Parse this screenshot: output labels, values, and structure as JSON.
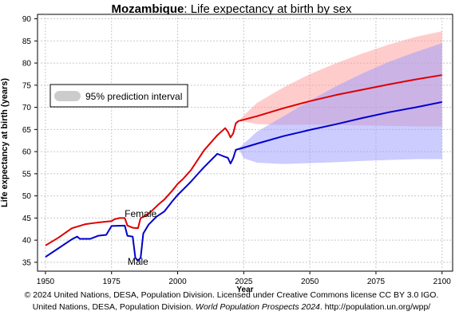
{
  "chart_data": {
    "type": "line",
    "title_country": "Mozambique",
    "title_rest": ": Life expectancy at birth by sex",
    "xlabel": "Year",
    "ylabel": "Life expectancy at birth (years)",
    "xlim": [
      1947,
      2104
    ],
    "ylim": [
      33,
      91
    ],
    "x_ticks": [
      1950,
      1975,
      2000,
      2025,
      2050,
      2075,
      2100
    ],
    "y_ticks": [
      35,
      40,
      45,
      50,
      55,
      60,
      65,
      70,
      75,
      80,
      85,
      90
    ],
    "grid": true,
    "legend": {
      "label": "95% prediction interval",
      "placement": "upper-left"
    },
    "series": [
      {
        "name": "Female",
        "color": "#dd0000",
        "band_color": "#ff9999",
        "points": [
          [
            1950,
            38.8
          ],
          [
            1955,
            40.6
          ],
          [
            1960,
            42.7
          ],
          [
            1965,
            43.6
          ],
          [
            1970,
            44.0
          ],
          [
            1975,
            44.3
          ],
          [
            1976,
            44.7
          ],
          [
            1978,
            45.0
          ],
          [
            1980,
            45.0
          ],
          [
            1981,
            43.3
          ],
          [
            1983,
            42.8
          ],
          [
            1985,
            42.7
          ],
          [
            1986,
            45.0
          ],
          [
            1988,
            45.5
          ],
          [
            1990,
            46.5
          ],
          [
            1993,
            48.2
          ],
          [
            1995,
            49.2
          ],
          [
            1998,
            51.2
          ],
          [
            2000,
            52.7
          ],
          [
            2002,
            53.8
          ],
          [
            2005,
            55.8
          ],
          [
            2008,
            58.5
          ],
          [
            2010,
            60.3
          ],
          [
            2015,
            63.7
          ],
          [
            2018,
            65.3
          ],
          [
            2019,
            64.5
          ],
          [
            2020,
            63.2
          ],
          [
            2021,
            64.1
          ],
          [
            2022,
            66.4
          ],
          [
            2023,
            66.9
          ],
          [
            2030,
            68.0
          ],
          [
            2040,
            69.8
          ],
          [
            2050,
            71.4
          ],
          [
            2060,
            72.8
          ],
          [
            2070,
            74.0
          ],
          [
            2080,
            75.2
          ],
          [
            2090,
            76.3
          ],
          [
            2100,
            77.3
          ]
        ],
        "upper": [
          [
            2023,
            67.0
          ],
          [
            2030,
            71.0
          ],
          [
            2040,
            74.5
          ],
          [
            2050,
            77.5
          ],
          [
            2060,
            80.0
          ],
          [
            2070,
            82.2
          ],
          [
            2080,
            84.2
          ],
          [
            2090,
            85.9
          ],
          [
            2100,
            87.2
          ]
        ],
        "lower": [
          [
            2023,
            67.0
          ],
          [
            2030,
            66.2
          ],
          [
            2040,
            66.0
          ],
          [
            2050,
            66.1
          ],
          [
            2060,
            66.0
          ],
          [
            2070,
            65.9
          ],
          [
            2080,
            65.8
          ],
          [
            2090,
            65.7
          ],
          [
            2100,
            65.7
          ]
        ]
      },
      {
        "name": "Male",
        "color": "#0000cc",
        "band_color": "#9999ff",
        "points": [
          [
            1950,
            36.2
          ],
          [
            1955,
            38.2
          ],
          [
            1960,
            40.2
          ],
          [
            1962,
            40.8
          ],
          [
            1963,
            40.3
          ],
          [
            1967,
            40.3
          ],
          [
            1970,
            41.0
          ],
          [
            1973,
            41.2
          ],
          [
            1975,
            43.2
          ],
          [
            1980,
            43.3
          ],
          [
            1981,
            41.0
          ],
          [
            1983,
            40.8
          ],
          [
            1984,
            36.0
          ],
          [
            1985,
            35.4
          ],
          [
            1986,
            36.0
          ],
          [
            1987,
            41.5
          ],
          [
            1989,
            43.5
          ],
          [
            1992,
            45.3
          ],
          [
            1995,
            46.5
          ],
          [
            1998,
            48.8
          ],
          [
            2000,
            50.2
          ],
          [
            2003,
            52.0
          ],
          [
            2005,
            53.2
          ],
          [
            2008,
            55.2
          ],
          [
            2010,
            56.5
          ],
          [
            2015,
            59.5
          ],
          [
            2018,
            58.8
          ],
          [
            2019,
            58.6
          ],
          [
            2020,
            57.3
          ],
          [
            2021,
            58.5
          ],
          [
            2022,
            60.4
          ],
          [
            2025,
            60.9
          ],
          [
            2030,
            61.8
          ],
          [
            2040,
            63.5
          ],
          [
            2050,
            64.9
          ],
          [
            2060,
            66.2
          ],
          [
            2070,
            67.6
          ],
          [
            2080,
            68.9
          ],
          [
            2090,
            70.0
          ],
          [
            2100,
            71.2
          ]
        ],
        "upper": [
          [
            2023,
            60.7
          ],
          [
            2030,
            64.5
          ],
          [
            2040,
            68.0
          ],
          [
            2050,
            71.5
          ],
          [
            2060,
            74.8
          ],
          [
            2070,
            77.7
          ],
          [
            2080,
            80.3
          ],
          [
            2090,
            82.5
          ],
          [
            2100,
            84.5
          ]
        ],
        "lower": [
          [
            2023,
            60.7
          ],
          [
            2025,
            58.5
          ],
          [
            2030,
            57.5
          ],
          [
            2040,
            57.2
          ],
          [
            2050,
            57.4
          ],
          [
            2060,
            57.6
          ],
          [
            2070,
            57.9
          ],
          [
            2080,
            58.1
          ],
          [
            2090,
            58.3
          ],
          [
            2100,
            58.3
          ]
        ]
      }
    ],
    "annotations": [
      {
        "text": "Female",
        "x": 1986,
        "y": 46.0
      },
      {
        "text": "Male",
        "x": 1985,
        "y": 35.2
      }
    ]
  },
  "credit": {
    "line1": "© 2024 United Nations, DESA, Population Division. Licensed under Creative Commons license CC BY 3.0 IGO.",
    "line2_prefix": "United Nations, DESA, Population Division. ",
    "line2_italic": "World Population Prospects 2024",
    "line2_suffix": ". http://population.un.org/wpp/"
  }
}
